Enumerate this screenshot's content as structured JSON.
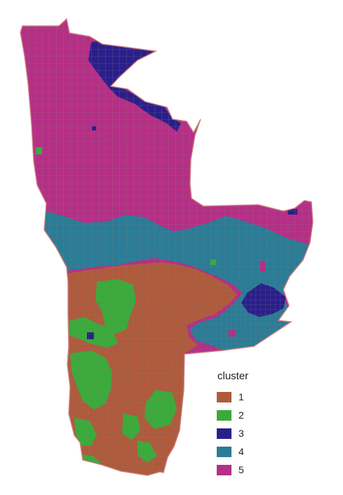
{
  "legend": {
    "title": "cluster",
    "items": [
      {
        "label": "1",
        "color": "#b05a3c"
      },
      {
        "label": "2",
        "color": "#3aab3a"
      },
      {
        "label": "3",
        "color": "#2a1f8a"
      },
      {
        "label": "4",
        "color": "#2b7c96"
      },
      {
        "label": "5",
        "color": "#b52f86"
      }
    ]
  },
  "colors": {
    "county_border": "#808080",
    "outer_border": "#d08080",
    "background": "#ffffff"
  }
}
